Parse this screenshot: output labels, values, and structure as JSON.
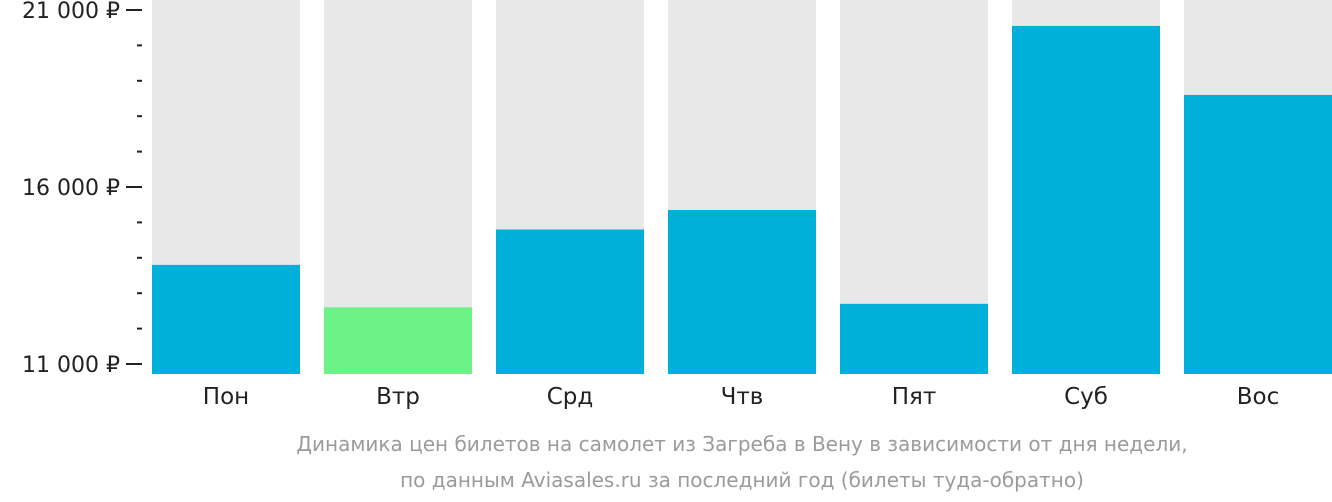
{
  "chart_data": {
    "type": "bar",
    "categories": [
      "Пон",
      "Втр",
      "Срд",
      "Чтв",
      "Пят",
      "Суб",
      "Вос"
    ],
    "values": [
      13800,
      12600,
      14800,
      15350,
      12700,
      20550,
      18600
    ],
    "ylim": [
      11000,
      21000
    ],
    "y_ticks": [
      {
        "value": 11000,
        "label": "11 000 ₽"
      },
      {
        "value": 16000,
        "label": "16 000 ₽"
      },
      {
        "value": 21000,
        "label": "21 000 ₽"
      }
    ],
    "y_minor_step": 1000,
    "highlight_index": 1,
    "caption": [
      "Динамика цен билетов на самолет из Загреба в Вену в зависимости от дня недели,",
      "по данным Aviasales.ru за последний год (билеты туда-обратно)"
    ],
    "colors": {
      "bar": "#00b0db",
      "highlight": "#6cf286",
      "track": "#e8e8e8",
      "axis": "#222222",
      "caption": "#9b9b9b"
    }
  }
}
